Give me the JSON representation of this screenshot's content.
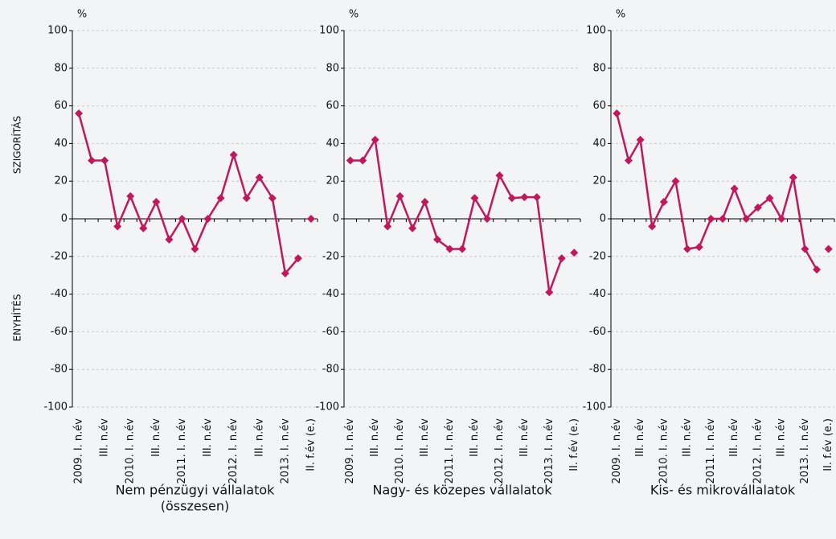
{
  "side_labels": {
    "top": "SZIGORÍTÁS",
    "bottom": "ENYHÍTÉS"
  },
  "chart_data": [
    {
      "type": "line",
      "ylabel": "%",
      "xlabel": [
        "Nem pénzügyi vállalatok",
        "(összesen)"
      ],
      "categories": [
        "2009. I. n.év",
        null,
        "III. n.év",
        null,
        "2010. I. n.év",
        null,
        "III. n.év",
        null,
        "2011. I. n.év",
        null,
        "III. n.év",
        null,
        "2012. I. n.év",
        null,
        "III. n.év",
        null,
        "2013. I. n.év",
        null,
        "II. f.év (e.)"
      ],
      "series": [
        {
          "color": "#c2185b",
          "values": [
            56,
            31,
            31,
            -4,
            12,
            -5,
            9,
            -11,
            0,
            -16,
            0,
            11,
            34,
            11,
            22,
            11,
            -29,
            -21,
            null
          ]
        },
        {
          "color": "#c2185b",
          "values": [
            null,
            null,
            null,
            null,
            null,
            null,
            null,
            null,
            null,
            null,
            null,
            null,
            null,
            null,
            null,
            null,
            null,
            null,
            0
          ]
        }
      ],
      "ylim": [
        -100,
        100
      ],
      "yticks": [
        -100,
        -80,
        -60,
        -40,
        -20,
        0,
        20,
        40,
        60,
        80,
        100
      ],
      "grid": true
    },
    {
      "type": "line",
      "xlabel": [
        "Nagy- és közepes vállalatok"
      ],
      "ylabel": "%",
      "categories": [
        "2009. I. n.év",
        null,
        "III. n.év",
        null,
        "2010. I. n.év",
        null,
        "III. n.év",
        null,
        "2011. I. n.év",
        null,
        "III. n.év",
        null,
        "2012. I. n.év",
        null,
        "III. n.év",
        null,
        "2013. I. n.év",
        null,
        "II. f.év (e.)"
      ],
      "series": [
        {
          "color": "#c2185b",
          "values": [
            31,
            31,
            42,
            -4,
            12,
            -5,
            9,
            -11,
            -16,
            -16,
            11,
            0,
            23,
            11,
            11.5,
            11.5,
            -39,
            -21,
            null
          ]
        },
        {
          "color": "#c2185b",
          "values": [
            null,
            null,
            null,
            null,
            null,
            null,
            null,
            null,
            null,
            null,
            null,
            null,
            null,
            null,
            null,
            null,
            null,
            null,
            -18
          ]
        }
      ],
      "ylim": [
        -100,
        100
      ],
      "yticks": [
        -100,
        -80,
        -60,
        -40,
        -20,
        0,
        20,
        40,
        60,
        80,
        100
      ],
      "grid": true
    },
    {
      "type": "line",
      "xlabel": [
        "Kis- és mikrovállalatok"
      ],
      "ylabel": "%",
      "categories": [
        "2009. I. n.év",
        null,
        "III. n.év",
        null,
        "2010. I. n.év",
        null,
        "III. n.év",
        null,
        "2011. I. n.év",
        null,
        "III. n.év",
        null,
        "2012. I. n.év",
        null,
        "III. n.év",
        null,
        "2013. I. n.év",
        null,
        "II. f.év (e.)"
      ],
      "series": [
        {
          "color": "#c2185b",
          "values": [
            56,
            31,
            42,
            -4,
            9,
            20,
            -16,
            -15,
            0,
            0,
            16,
            0,
            6,
            11,
            0,
            22,
            -16,
            -27,
            null
          ]
        },
        {
          "color": "#c2185b",
          "values": [
            null,
            null,
            null,
            null,
            null,
            null,
            null,
            null,
            null,
            null,
            null,
            null,
            null,
            null,
            null,
            null,
            null,
            null,
            -16
          ]
        }
      ],
      "ylim": [
        -100,
        100
      ],
      "yticks": [
        -100,
        -80,
        -60,
        -40,
        -20,
        0,
        20,
        40,
        60,
        80,
        100
      ],
      "grid": true
    }
  ]
}
